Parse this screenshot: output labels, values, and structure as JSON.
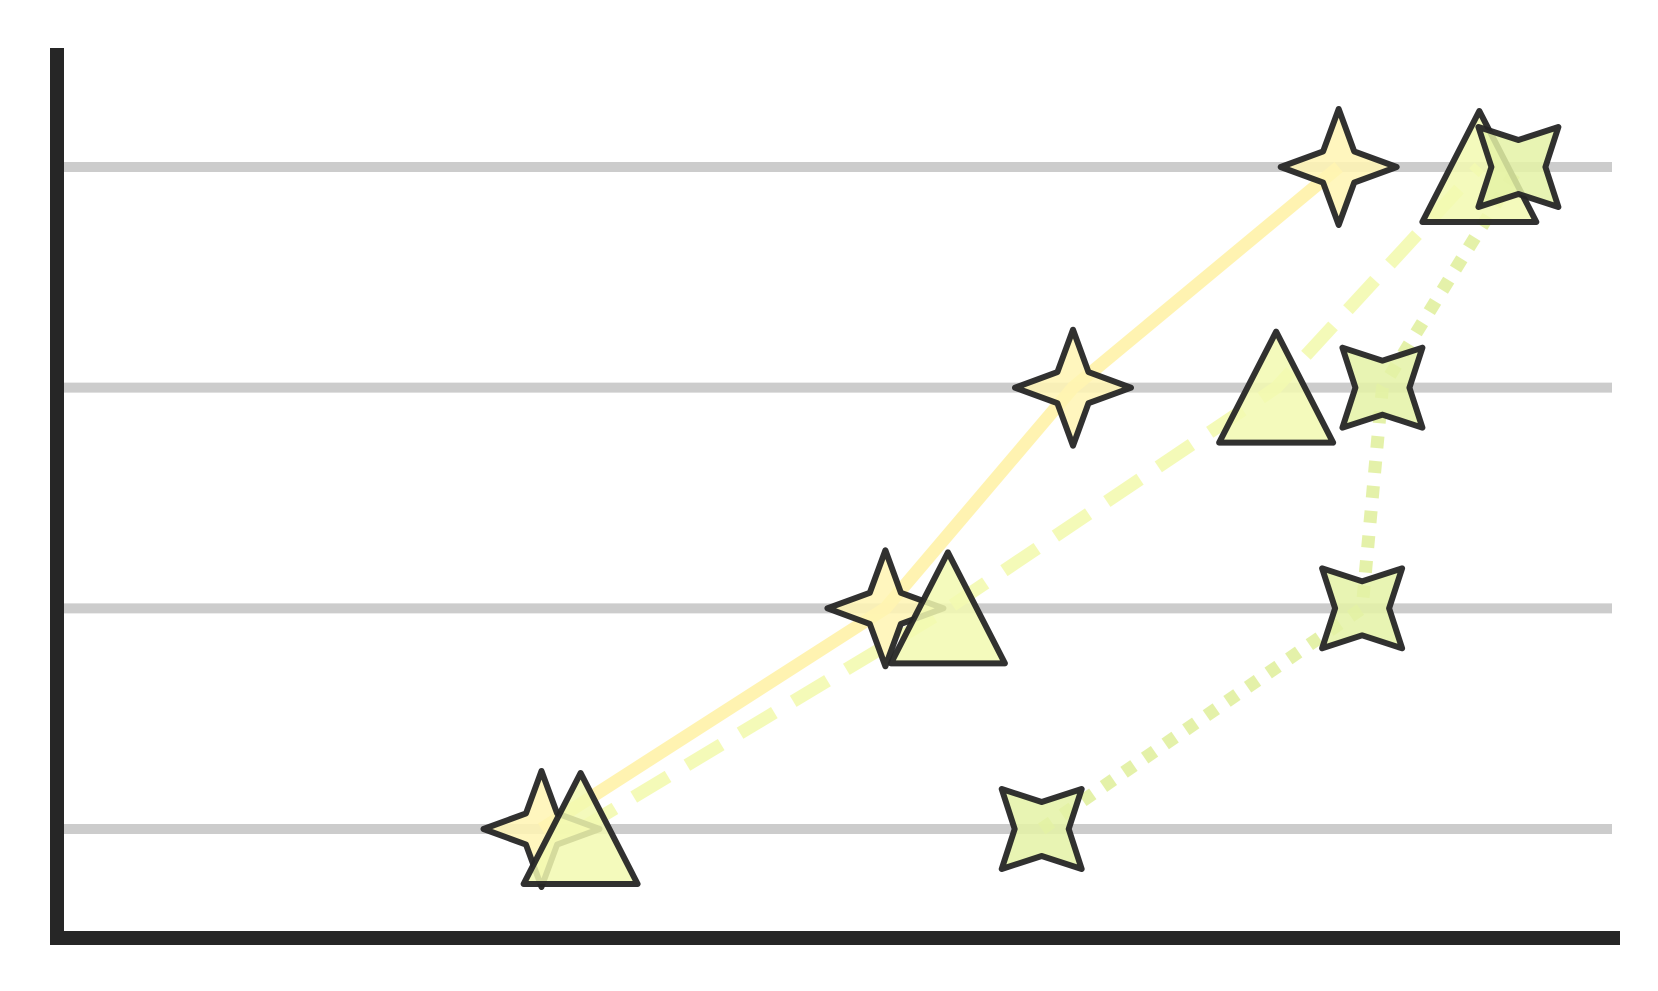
{
  "chart_data": {
    "type": "line",
    "title": "",
    "xlabel": "",
    "ylabel": "",
    "xlim": [
      0,
      10
    ],
    "ylim": [
      0,
      4
    ],
    "grid": {
      "horizontal": true,
      "vertical": false,
      "y_values": [
        1,
        2,
        3,
        4
      ]
    },
    "axis_color": "#262626",
    "grid_color": "#cccccc",
    "marker_edge_color": "#262626",
    "series": [
      {
        "marker": "four-point-star",
        "line_style": "solid",
        "line_color": "#fff2a8",
        "fill_color": "#fff4b3",
        "points": [
          {
            "x": 3.1,
            "y": 1.0
          },
          {
            "x": 5.3,
            "y": 2.0
          },
          {
            "x": 6.5,
            "y": 3.0
          },
          {
            "x": 8.2,
            "y": 4.0
          }
        ]
      },
      {
        "marker": "triangle",
        "line_style": "dashed",
        "line_color": "#f3fab0",
        "fill_color": "#f2f9b0",
        "points": [
          {
            "x": 3.35,
            "y": 1.0
          },
          {
            "x": 5.7,
            "y": 2.0
          },
          {
            "x": 7.8,
            "y": 3.0
          },
          {
            "x": 9.1,
            "y": 4.0
          }
        ]
      },
      {
        "marker": "concave-star",
        "line_style": "dotted",
        "line_color": "#e1f0a0",
        "fill_color": "#e4f2a6",
        "points": [
          {
            "x": 6.3,
            "y": 1.0
          },
          {
            "x": 8.35,
            "y": 2.0
          },
          {
            "x": 8.48,
            "y": 3.0
          },
          {
            "x": 9.35,
            "y": 4.0
          }
        ]
      }
    ]
  }
}
